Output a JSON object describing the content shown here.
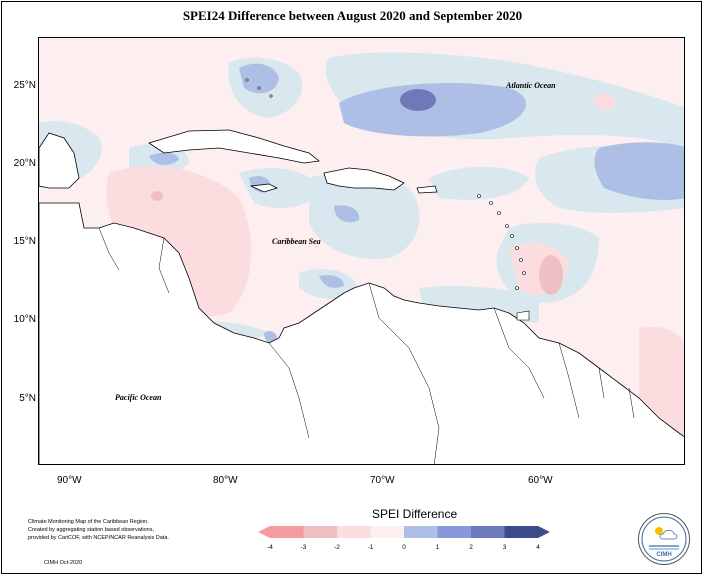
{
  "title": "SPEI24 Difference between August 2020 and September 2020",
  "axes": {
    "lat_labels": [
      "25°N",
      "20°N",
      "15°N",
      "10°N",
      "5°N"
    ],
    "lon_labels": [
      "90°W",
      "80°W",
      "70°W",
      "60°W"
    ]
  },
  "ocean_labels": {
    "atlantic": "Atlantic Ocean",
    "caribbean": "Caribbean Sea",
    "pacific": "Pacific Ocean"
  },
  "legend": {
    "title": "SPEI Difference",
    "ticks": [
      "-4",
      "-3",
      "-2",
      "-1",
      "0",
      "1",
      "2",
      "3",
      "4"
    ],
    "colors": [
      "#f59a9f",
      "#efc0c3",
      "#fbdde0",
      "#fdeff0",
      "#d9e7ee",
      "#aebfe6",
      "#8a97da",
      "#6f78b8",
      "#3c4c8a"
    ]
  },
  "credits": {
    "line1": "Climate Monitoring Map of the Caribbean Region.",
    "line2": "Created by aggregating station based observations,",
    "line3": "provided by CariCOF, with NCEP/NCAR Reanalysis Data.",
    "footer": "CIMH Oct-2020"
  },
  "logo": {
    "name": "CIMH",
    "icon": "sun-and-cloud-seal-icon"
  }
}
